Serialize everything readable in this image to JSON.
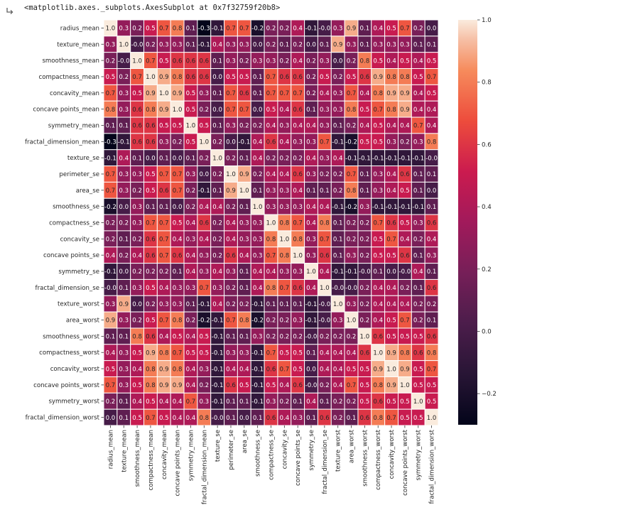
{
  "cell_output": {
    "text": "<matplotlib.axes._subplots.AxesSubplot at 0x7f32759f20b8>",
    "icon": "output-arrow-icon"
  },
  "chart_data": {
    "type": "heatmap",
    "title": "",
    "xlabel": "",
    "ylabel": "",
    "labels": [
      "radius_mean",
      "texture_mean",
      "smoothness_mean",
      "compactness_mean",
      "concavity_mean",
      "concave points_mean",
      "symmetry_mean",
      "fractal_dimension_mean",
      "texture_se",
      "perimeter_se",
      "area_se",
      "smoothness_se",
      "compactness_se",
      "concavity_se",
      "concave points_se",
      "symmetry_se",
      "fractal_dimension_se",
      "texture_worst",
      "area_worst",
      "smoothness_worst",
      "compactness_worst",
      "concavity_worst",
      "concave points_worst",
      "symmetry_worst",
      "fractal_dimension_worst"
    ],
    "values": [
      [
        1.0,
        0.3,
        0.2,
        0.5,
        0.7,
        0.8,
        0.1,
        -0.3,
        -0.1,
        0.7,
        0.7,
        -0.2,
        0.2,
        0.2,
        0.4,
        -0.1,
        -0.0,
        0.3,
        0.9,
        0.1,
        0.4,
        0.5,
        0.7,
        0.2,
        0.0
      ],
      [
        0.3,
        1.0,
        -0.0,
        0.2,
        0.3,
        0.3,
        0.1,
        -0.1,
        0.4,
        0.3,
        0.3,
        0.0,
        0.2,
        0.1,
        0.2,
        0.0,
        0.1,
        0.9,
        0.3,
        0.1,
        0.3,
        0.3,
        0.3,
        0.1,
        0.1
      ],
      [
        0.2,
        -0.0,
        1.0,
        0.7,
        0.5,
        0.6,
        0.6,
        0.6,
        0.1,
        0.3,
        0.2,
        0.3,
        0.3,
        0.2,
        0.4,
        0.2,
        0.3,
        0.0,
        0.2,
        0.8,
        0.5,
        0.4,
        0.5,
        0.4,
        0.5
      ],
      [
        0.5,
        0.2,
        0.7,
        1.0,
        0.9,
        0.8,
        0.6,
        0.6,
        0.0,
        0.5,
        0.5,
        0.1,
        0.7,
        0.6,
        0.6,
        0.2,
        0.5,
        0.2,
        0.5,
        0.6,
        0.9,
        0.8,
        0.8,
        0.5,
        0.7
      ],
      [
        0.7,
        0.3,
        0.5,
        0.9,
        1.0,
        0.9,
        0.5,
        0.3,
        0.1,
        0.7,
        0.6,
        0.1,
        0.7,
        0.7,
        0.7,
        0.2,
        0.4,
        0.3,
        0.7,
        0.4,
        0.8,
        0.9,
        0.9,
        0.4,
        0.5
      ],
      [
        0.8,
        0.3,
        0.6,
        0.8,
        0.9,
        1.0,
        0.5,
        0.2,
        0.0,
        0.7,
        0.7,
        0.0,
        0.5,
        0.4,
        0.6,
        0.1,
        0.3,
        0.3,
        0.8,
        0.5,
        0.7,
        0.8,
        0.9,
        0.4,
        0.4
      ],
      [
        0.1,
        0.1,
        0.6,
        0.6,
        0.5,
        0.5,
        1.0,
        0.5,
        0.1,
        0.3,
        0.2,
        0.2,
        0.4,
        0.3,
        0.4,
        0.4,
        0.3,
        0.1,
        0.2,
        0.4,
        0.5,
        0.4,
        0.4,
        0.7,
        0.4
      ],
      [
        -0.3,
        -0.1,
        0.6,
        0.6,
        0.3,
        0.2,
        0.5,
        1.0,
        0.2,
        0.0,
        -0.1,
        0.4,
        0.6,
        0.4,
        0.3,
        0.3,
        0.7,
        -0.1,
        -0.2,
        0.5,
        0.5,
        0.3,
        0.2,
        0.3,
        0.8
      ],
      [
        -0.1,
        0.4,
        0.1,
        0.0,
        0.1,
        0.0,
        0.1,
        0.2,
        1.0,
        0.2,
        0.1,
        0.4,
        0.2,
        0.2,
        0.2,
        0.4,
        0.3,
        0.4,
        -0.1,
        -0.1,
        -0.1,
        -0.1,
        -0.1,
        -0.1,
        -0.0
      ],
      [
        0.7,
        0.3,
        0.3,
        0.5,
        0.7,
        0.7,
        0.3,
        0.0,
        0.2,
        1.0,
        0.9,
        0.2,
        0.4,
        0.4,
        0.6,
        0.3,
        0.2,
        0.2,
        0.7,
        0.1,
        0.3,
        0.4,
        0.6,
        0.1,
        0.1
      ],
      [
        0.7,
        0.3,
        0.2,
        0.5,
        0.6,
        0.7,
        0.2,
        -0.1,
        0.1,
        0.9,
        1.0,
        0.1,
        0.3,
        0.3,
        0.4,
        0.1,
        0.1,
        0.2,
        0.8,
        0.1,
        0.3,
        0.4,
        0.5,
        0.1,
        0.0
      ],
      [
        -0.2,
        0.0,
        0.3,
        0.1,
        0.1,
        0.0,
        0.2,
        0.4,
        0.4,
        0.2,
        0.1,
        1.0,
        0.3,
        0.3,
        0.3,
        0.4,
        0.4,
        -0.1,
        -0.2,
        0.3,
        -0.1,
        -0.1,
        -0.1,
        -0.1,
        0.1
      ],
      [
        0.2,
        0.2,
        0.3,
        0.7,
        0.7,
        0.5,
        0.4,
        0.6,
        0.2,
        0.4,
        0.3,
        0.3,
        1.0,
        0.8,
        0.7,
        0.4,
        0.8,
        0.1,
        0.2,
        0.2,
        0.7,
        0.6,
        0.5,
        0.3,
        0.6
      ],
      [
        0.2,
        0.1,
        0.2,
        0.6,
        0.7,
        0.4,
        0.3,
        0.4,
        0.2,
        0.4,
        0.3,
        0.3,
        0.8,
        1.0,
        0.8,
        0.3,
        0.7,
        0.1,
        0.2,
        0.2,
        0.5,
        0.7,
        0.4,
        0.2,
        0.4
      ],
      [
        0.4,
        0.2,
        0.4,
        0.6,
        0.7,
        0.6,
        0.4,
        0.3,
        0.2,
        0.6,
        0.4,
        0.3,
        0.7,
        0.8,
        1.0,
        0.3,
        0.6,
        0.1,
        0.3,
        0.2,
        0.5,
        0.5,
        0.6,
        0.1,
        0.3
      ],
      [
        -0.1,
        0.0,
        0.2,
        0.2,
        0.2,
        0.1,
        0.4,
        0.3,
        0.4,
        0.3,
        0.1,
        0.4,
        0.4,
        0.3,
        0.3,
        1.0,
        0.4,
        -0.1,
        -0.1,
        -0.0,
        0.1,
        0.0,
        -0.0,
        0.4,
        0.1
      ],
      [
        -0.0,
        0.1,
        0.3,
        0.5,
        0.4,
        0.3,
        0.3,
        0.7,
        0.3,
        0.2,
        0.1,
        0.4,
        0.8,
        0.7,
        0.6,
        0.4,
        1.0,
        -0.0,
        -0.0,
        0.2,
        0.4,
        0.4,
        0.2,
        0.1,
        0.6
      ],
      [
        0.3,
        0.9,
        0.0,
        0.2,
        0.3,
        0.3,
        0.1,
        -0.1,
        0.4,
        0.2,
        0.2,
        -0.1,
        0.1,
        0.1,
        0.1,
        -0.1,
        -0.0,
        1.0,
        0.3,
        0.2,
        0.4,
        0.4,
        0.4,
        0.2,
        0.2
      ],
      [
        0.9,
        0.3,
        0.2,
        0.5,
        0.7,
        0.8,
        0.2,
        -0.2,
        -0.1,
        0.7,
        0.8,
        -0.2,
        0.2,
        0.2,
        0.3,
        -0.1,
        -0.0,
        0.3,
        1.0,
        0.2,
        0.4,
        0.5,
        0.7,
        0.2,
        0.1
      ],
      [
        0.1,
        0.1,
        0.8,
        0.6,
        0.4,
        0.5,
        0.4,
        0.5,
        -0.1,
        0.1,
        0.1,
        0.3,
        0.2,
        0.2,
        0.2,
        -0.0,
        0.2,
        0.2,
        0.2,
        1.0,
        0.6,
        0.5,
        0.5,
        0.5,
        0.6
      ],
      [
        0.4,
        0.3,
        0.5,
        0.9,
        0.8,
        0.7,
        0.5,
        0.5,
        -0.1,
        0.3,
        0.3,
        -0.1,
        0.7,
        0.5,
        0.5,
        0.1,
        0.4,
        0.4,
        0.4,
        0.6,
        1.0,
        0.9,
        0.8,
        0.6,
        0.8
      ],
      [
        0.5,
        0.3,
        0.4,
        0.8,
        0.9,
        0.8,
        0.4,
        0.3,
        -0.1,
        0.4,
        0.4,
        -0.1,
        0.6,
        0.7,
        0.5,
        0.0,
        0.4,
        0.4,
        0.5,
        0.5,
        0.9,
        1.0,
        0.9,
        0.5,
        0.7
      ],
      [
        0.7,
        0.3,
        0.5,
        0.8,
        0.9,
        0.9,
        0.4,
        0.2,
        -0.1,
        0.6,
        0.5,
        -0.1,
        0.5,
        0.4,
        0.6,
        -0.0,
        0.2,
        0.4,
        0.7,
        0.5,
        0.8,
        0.9,
        1.0,
        0.5,
        0.5
      ],
      [
        0.2,
        0.1,
        0.4,
        0.5,
        0.4,
        0.4,
        0.7,
        0.3,
        -0.1,
        0.1,
        0.1,
        -0.1,
        0.3,
        0.2,
        0.1,
        0.4,
        0.1,
        0.2,
        0.2,
        0.5,
        0.6,
        0.5,
        0.5,
        1.0,
        0.5
      ],
      [
        0.0,
        0.1,
        0.5,
        0.7,
        0.5,
        0.4,
        0.4,
        0.8,
        -0.0,
        0.1,
        0.0,
        0.1,
        0.6,
        0.4,
        0.3,
        0.1,
        0.6,
        0.2,
        0.1,
        0.6,
        0.8,
        0.7,
        0.5,
        0.5,
        1.0
      ]
    ],
    "vmin": -0.3,
    "vmax": 1.0,
    "colormap": "rocket",
    "colorbar_ticks": [
      1.0,
      0.8,
      0.6,
      0.4,
      0.2,
      0.0,
      -0.2
    ],
    "colorbar_tick_labels": [
      "1.0",
      "0.8",
      "0.6",
      "0.4",
      "0.2",
      "0.0",
      "−0.2"
    ],
    "cell_border_color": "#ffffff",
    "annotations": true,
    "annotation_format": "0.1f",
    "legend": "colorbar-right"
  }
}
